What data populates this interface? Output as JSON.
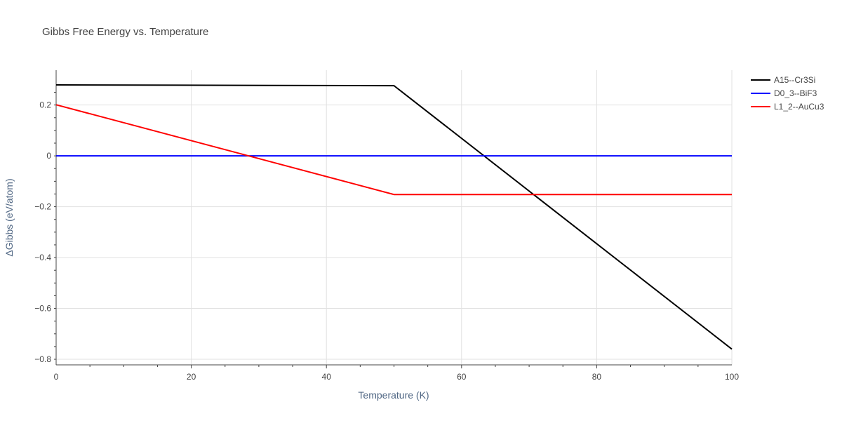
{
  "chart_data": {
    "type": "line",
    "title": "Gibbs Free Energy vs. Temperature",
    "xlabel": "Temperature (K)",
    "ylabel": "ΔGibbs (eV/atom)",
    "xlim": [
      0,
      100
    ],
    "ylim": [
      -0.822,
      0.337
    ],
    "xticks": [
      0,
      20,
      40,
      60,
      80,
      100
    ],
    "xtick_labels": [
      "0",
      "20",
      "40",
      "60",
      "80",
      "100"
    ],
    "yticks": [
      0.2,
      0,
      -0.2,
      -0.4,
      -0.6,
      -0.8
    ],
    "ytick_labels": [
      "0.2",
      "0",
      "−0.2",
      "−0.4",
      "−0.6",
      "−0.8"
    ],
    "grid": true,
    "legend_position": "top-right outside",
    "series": [
      {
        "name": "A15--Cr3Si",
        "color": "#000000",
        "x": [
          0,
          50,
          100
        ],
        "y": [
          0.279,
          0.276,
          -0.76
        ]
      },
      {
        "name": "D0_3--BiF3",
        "color": "#0000ff",
        "x": [
          0,
          50,
          100
        ],
        "y": [
          0,
          0,
          0
        ]
      },
      {
        "name": "L1_2--AuCu3",
        "color": "#ff0000",
        "x": [
          0,
          50,
          100
        ],
        "y": [
          0.201,
          -0.152,
          -0.152
        ]
      }
    ]
  }
}
